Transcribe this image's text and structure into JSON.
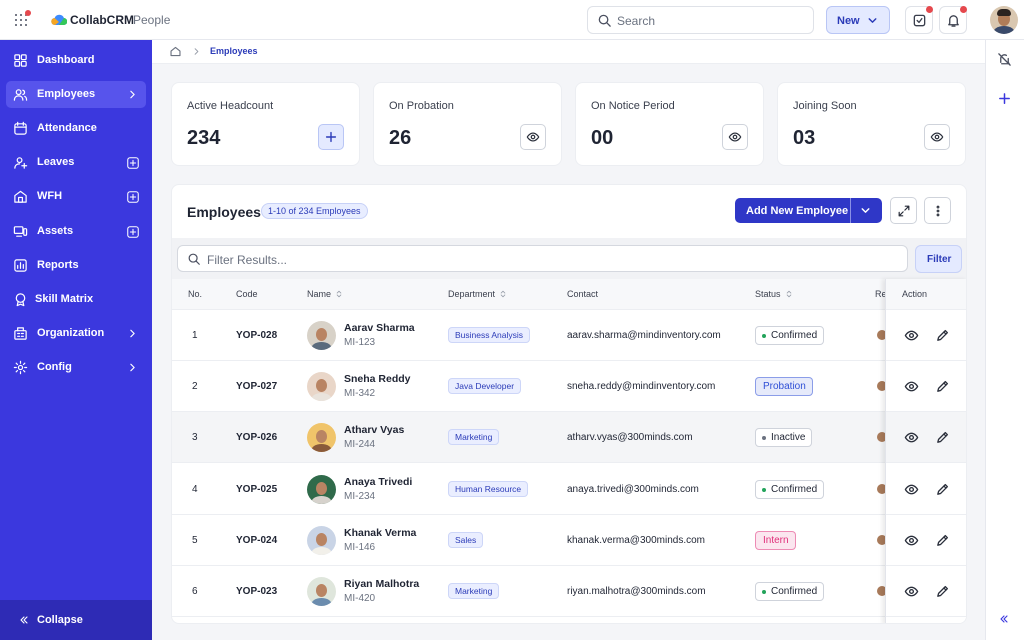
{
  "header": {
    "app_name": "CollabCRM",
    "section": "People",
    "search_placeholder": "Search",
    "new_button": "New"
  },
  "sidebar": {
    "items": [
      "Dashboard",
      "Employees",
      "Attendance",
      "Leaves",
      "WFH",
      "Assets",
      "Reports",
      "Skill Matrix",
      "Organization",
      "Config"
    ],
    "collapse": "Collapse"
  },
  "breadcrumb": {
    "current": "Employees"
  },
  "stats": [
    {
      "label": "Active Headcount",
      "value": "234"
    },
    {
      "label": "On Probation",
      "value": "26"
    },
    {
      "label": "On Notice Period",
      "value": "00"
    },
    {
      "label": "Joining Soon",
      "value": "03"
    }
  ],
  "table": {
    "title": "Employees",
    "count_badge": "1-10 of 234 Employees",
    "add_button": "Add New Employee",
    "filter_placeholder": "Filter Results...",
    "filter_button": "Filter",
    "columns": [
      "No.",
      "Code",
      "Name",
      "Department",
      "Contact",
      "Status",
      "Re",
      "Action"
    ],
    "rows": [
      {
        "no": 1,
        "code": "YOP-028",
        "name": "Aarav Sharma",
        "emp_id": "MI-123",
        "department": "Business Analysis",
        "contact": "aarav.sharma@mindinventory.com",
        "status": "Confirmed",
        "status_color": "#22a35a"
      },
      {
        "no": 2,
        "code": "YOP-027",
        "name": "Sneha Reddy",
        "emp_id": "MI-342",
        "department": "Java Developer",
        "contact": "sneha.reddy@mindinventory.com",
        "status": "Probation",
        "status_color": "#2f4fd6"
      },
      {
        "no": 3,
        "code": "YOP-026",
        "name": "Atharv Vyas",
        "emp_id": "MI-244",
        "department": "Marketing",
        "contact": "atharv.vyas@300minds.com",
        "status": "Inactive",
        "status_color": "#6b7280"
      },
      {
        "no": 4,
        "code": "YOP-025",
        "name": "Anaya Trivedi",
        "emp_id": "MI-234",
        "department": "Human Resource",
        "contact": "anaya.trivedi@300minds.com",
        "status": "Confirmed",
        "status_color": "#22a35a"
      },
      {
        "no": 5,
        "code": "YOP-024",
        "name": "Khanak Verma",
        "emp_id": "MI-146",
        "department": "Sales",
        "contact": "khanak.verma@300minds.com",
        "status": "Intern",
        "status_color": "#e0307a"
      },
      {
        "no": 6,
        "code": "YOP-023",
        "name": "Riyan Malhotra",
        "emp_id": "MI-420",
        "department": "Marketing",
        "contact": "riyan.malhotra@300minds.com",
        "status": "Confirmed",
        "status_color": "#22a35a"
      }
    ]
  }
}
